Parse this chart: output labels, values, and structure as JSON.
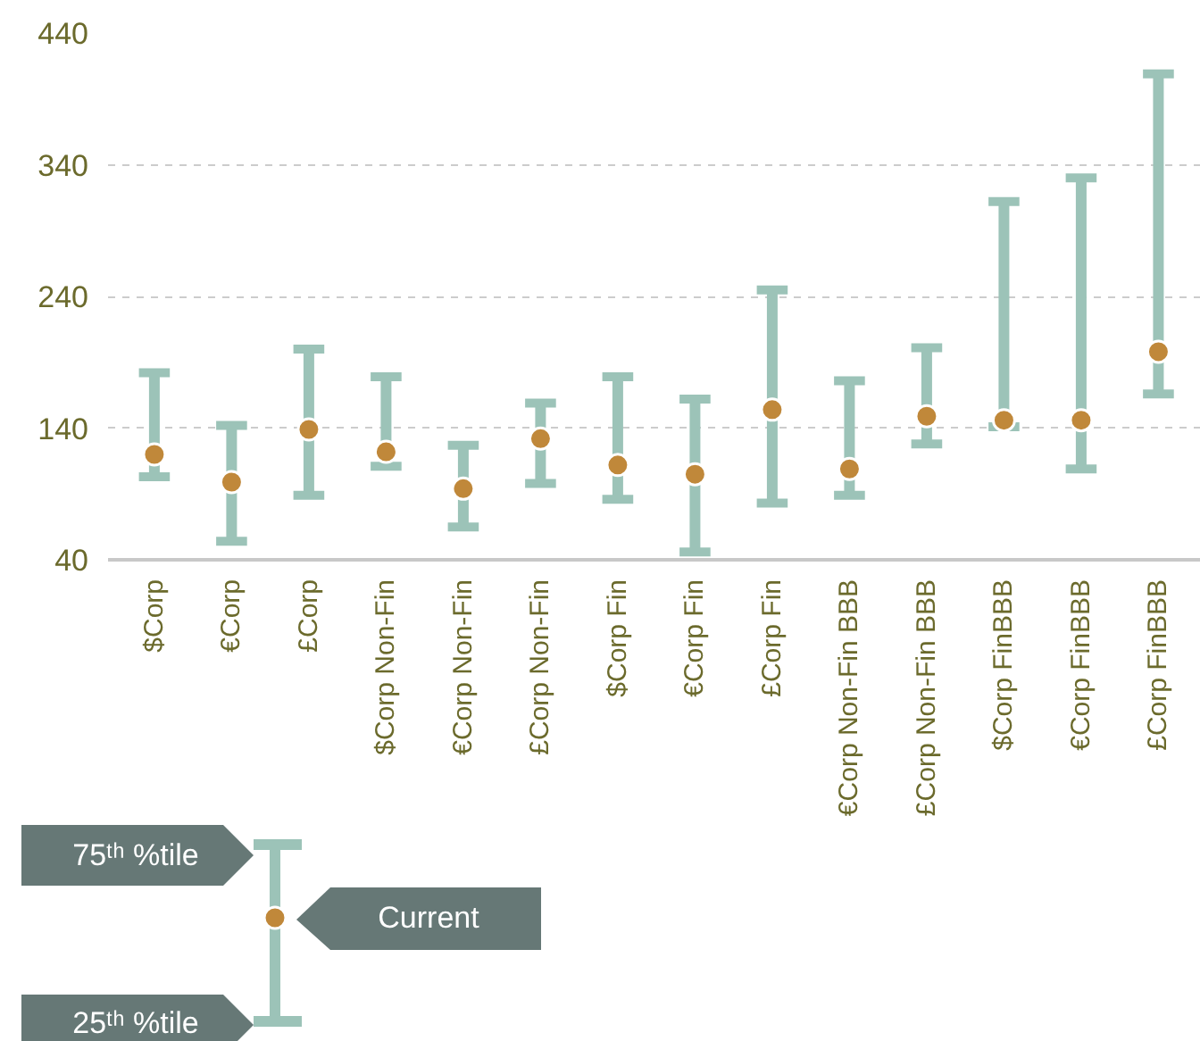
{
  "chart_data": {
    "type": "scatter",
    "categories": [
      "$Corp",
      "€Corp",
      "£Corp",
      "$Corp Non-Fin",
      "€Corp Non-Fin",
      "£Corp Non-Fin",
      "$Corp Fin",
      "€Corp Fin",
      "£Corp Fin",
      "€Corp Non-Fin BBB",
      "£Corp Non-Fin BBB",
      "$Corp FinBBB",
      "€Corp FinBBB",
      "£Corp FinBBB"
    ],
    "series": [
      {
        "color": "#c0883a",
        "values": [
          120,
          99,
          139,
          122,
          94,
          132,
          112,
          105,
          154,
          109,
          149,
          146,
          146,
          198
        ],
        "errors": [
          [
            103,
            182
          ],
          [
            54,
            142
          ],
          [
            89,
            200
          ],
          [
            111,
            179
          ],
          [
            65,
            127
          ],
          [
            98,
            159
          ],
          [
            86,
            179
          ],
          [
            46,
            162
          ],
          [
            83,
            245
          ],
          [
            89,
            176
          ],
          [
            128,
            201
          ],
          [
            141,
            312
          ],
          [
            109,
            330
          ],
          [
            166,
            409
          ]
        ]
      }
    ],
    "ylim": [
      40,
      440
    ],
    "yticks": [
      40,
      140,
      240,
      340,
      440
    ],
    "grid": "y",
    "marker": "circle",
    "annotations": [
      "75ᵗʰ %tile",
      "Current",
      "25ᵗʰ %tile"
    ]
  }
}
